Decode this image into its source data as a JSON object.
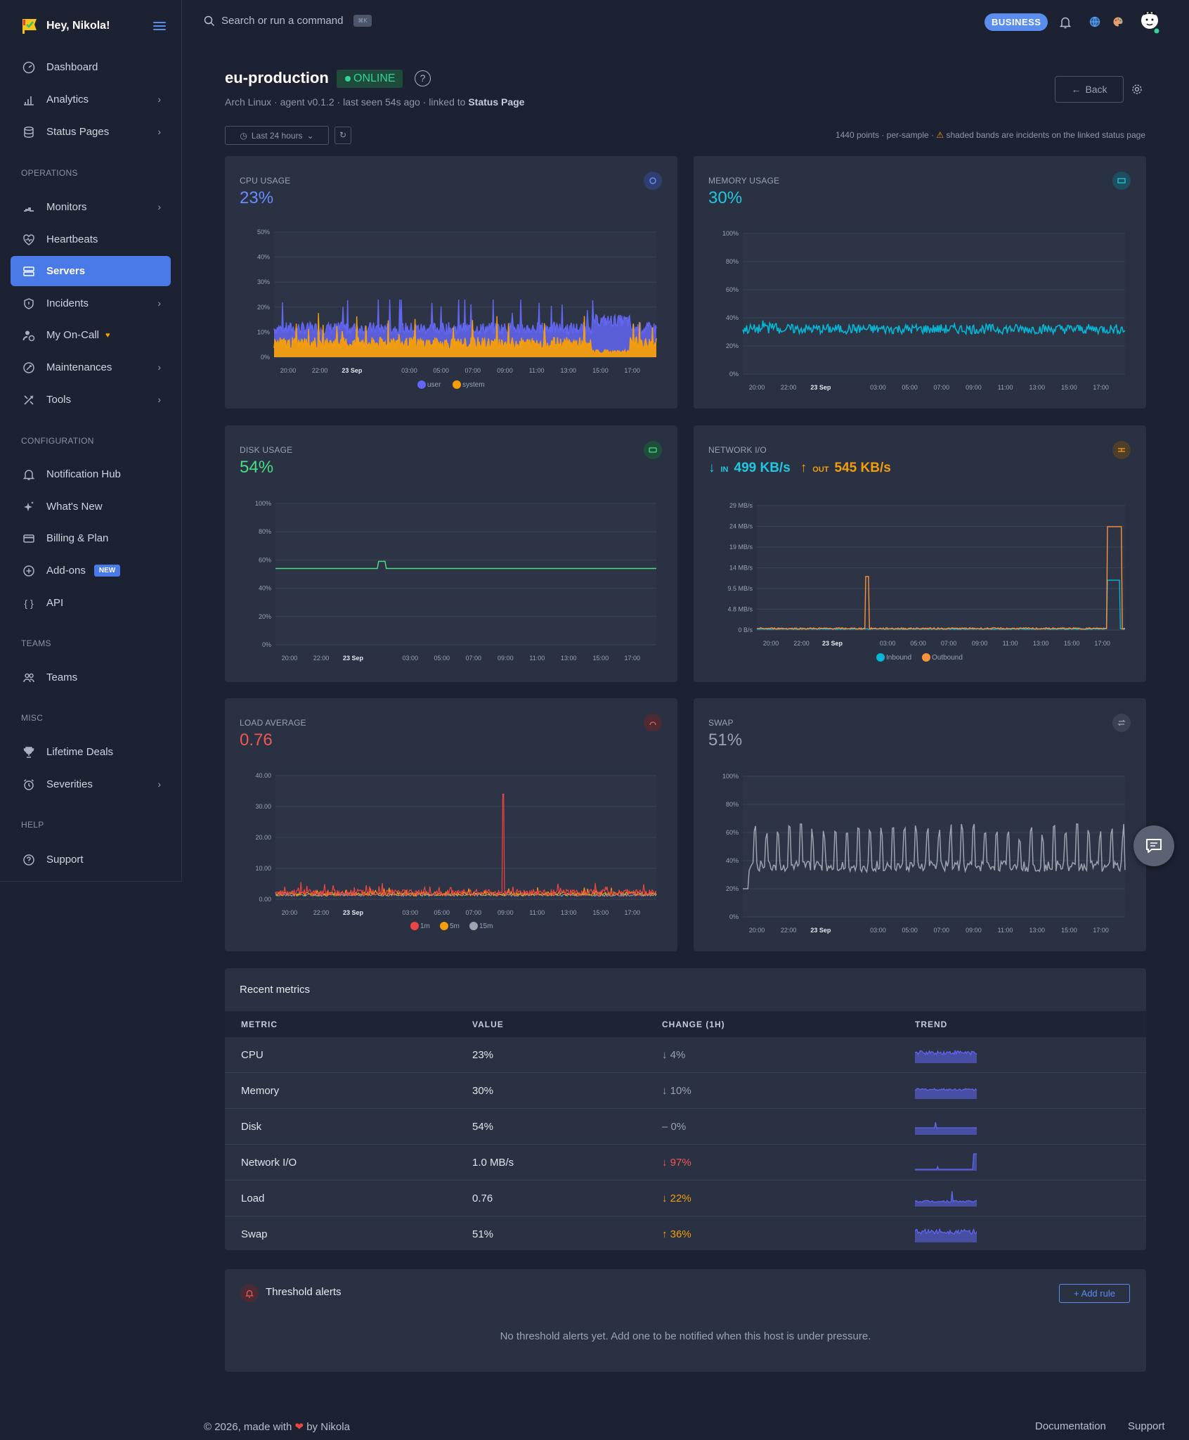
{
  "sidebar": {
    "greeting": "Hey, Nikola!",
    "items": [
      {
        "label": "Dashboard",
        "icon": "gauge-icon"
      },
      {
        "label": "Analytics",
        "icon": "bar-chart-icon"
      },
      {
        "label": "Status Pages",
        "icon": "database-icon"
      },
      {
        "label": "Monitors",
        "icon": "monitor-icon"
      },
      {
        "label": "Heartbeats",
        "icon": "heartbeat-icon"
      },
      {
        "label": "Servers",
        "icon": "server-icon"
      },
      {
        "label": "Incidents",
        "icon": "shield-icon"
      },
      {
        "label": "My On-Call",
        "icon": "user-clock-icon"
      },
      {
        "label": "Maintenances",
        "icon": "wrench-icon"
      },
      {
        "label": "Tools",
        "icon": "tools-icon"
      },
      {
        "label": "Notification Hub",
        "icon": "bell-icon"
      },
      {
        "label": "What's New",
        "icon": "sparkles-icon"
      },
      {
        "label": "Billing & Plan",
        "icon": "credit-card-icon"
      },
      {
        "label": "Add-ons",
        "icon": "plus-circle-icon"
      },
      {
        "label": "API",
        "icon": "braces-icon"
      },
      {
        "label": "Teams",
        "icon": "users-icon"
      },
      {
        "label": "Lifetime Deals",
        "icon": "trophy-icon"
      },
      {
        "label": "Severities",
        "icon": "alarm-icon"
      },
      {
        "label": "Support",
        "icon": "help-circle-icon"
      }
    ],
    "sections": {
      "operations": "OPERATIONS",
      "configuration": "CONFIGURATION",
      "teams": "TEAMS",
      "misc": "MISC",
      "help": "HELP"
    },
    "new_badge": "NEW"
  },
  "topbar": {
    "search_placeholder": "Search or run a command",
    "shortcut": "⌘K",
    "plan": "BUSINESS"
  },
  "server": {
    "name": "eu-production",
    "status": "ONLINE",
    "subtitle": "Arch Linux · agent v0.1.2 · last seen 54s ago · linked to ",
    "subtitle_link": "Status Page",
    "back": "Back",
    "range": "Last 24 hours",
    "meta": "1440 points · per-sample · ",
    "meta_warn": "⚠",
    "meta2": " shaded bands are incidents on the linked status page"
  },
  "cards": {
    "cpu": {
      "label": "CPU USAGE",
      "value": "23%"
    },
    "memory": {
      "label": "MEMORY USAGE",
      "value": "30%"
    },
    "disk": {
      "label": "DISK USAGE",
      "value": "54%"
    },
    "network": {
      "label": "NETWORK I/O",
      "in_label": "IN",
      "in_value": "499 KB/s",
      "out_label": "OUT",
      "out_value": "545 KB/s"
    },
    "load": {
      "label": "LOAD AVERAGE",
      "value": "0.76"
    },
    "swap": {
      "label": "SWAP",
      "value": "51%"
    }
  },
  "chart_data": [
    {
      "type": "area",
      "title": "CPU USAGE",
      "yticks": [
        "0%",
        "10%",
        "20%",
        "30%",
        "40%",
        "50%"
      ],
      "ylim": [
        0,
        50
      ],
      "xticks": [
        "20:00",
        "22:00",
        "23 Sep",
        "03:00",
        "05:00",
        "07:00",
        "09:00",
        "11:00",
        "13:00",
        "15:00",
        "17:00"
      ],
      "series": [
        {
          "name": "user",
          "color": "#6366f1"
        },
        {
          "name": "system",
          "color": "#f59e0b"
        }
      ]
    },
    {
      "type": "line",
      "title": "MEMORY USAGE",
      "yticks": [
        "0%",
        "20%",
        "40%",
        "60%",
        "80%",
        "100%"
      ],
      "ylim": [
        0,
        100
      ],
      "xticks": [
        "20:00",
        "22:00",
        "23 Sep",
        "03:00",
        "05:00",
        "07:00",
        "09:00",
        "11:00",
        "13:00",
        "15:00",
        "17:00"
      ],
      "series": [
        {
          "color": "#06b6d4",
          "level": 32
        }
      ]
    },
    {
      "type": "line",
      "title": "DISK USAGE",
      "yticks": [
        "0%",
        "20%",
        "40%",
        "60%",
        "80%",
        "100%"
      ],
      "ylim": [
        0,
        100
      ],
      "xticks": [
        "20:00",
        "22:00",
        "23 Sep",
        "03:00",
        "05:00",
        "07:00",
        "09:00",
        "11:00",
        "13:00",
        "15:00",
        "17:00"
      ],
      "series": [
        {
          "color": "#4ade80",
          "level": 54
        }
      ]
    },
    {
      "type": "line",
      "title": "NETWORK I/O",
      "yticks": [
        "0 B/s",
        "4.8 MB/s",
        "9.5 MB/s",
        "14 MB/s",
        "19 MB/s",
        "24 MB/s",
        "29 MB/s"
      ],
      "xticks": [
        "20:00",
        "22:00",
        "23 Sep",
        "03:00",
        "05:00",
        "07:00",
        "09:00",
        "11:00",
        "13:00",
        "15:00",
        "17:00"
      ],
      "series": [
        {
          "name": "Inbound",
          "color": "#06b6d4"
        },
        {
          "name": "Outbound",
          "color": "#fb923c"
        }
      ]
    },
    {
      "type": "line",
      "title": "LOAD AVERAGE",
      "yticks": [
        "0.00",
        "10.00",
        "20.00",
        "30.00",
        "40.00"
      ],
      "ylim": [
        0,
        40
      ],
      "xticks": [
        "20:00",
        "22:00",
        "23 Sep",
        "03:00",
        "05:00",
        "07:00",
        "09:00",
        "11:00",
        "13:00",
        "15:00",
        "17:00"
      ],
      "series": [
        {
          "name": "1m",
          "color": "#ef4444"
        },
        {
          "name": "5m",
          "color": "#f59e0b"
        },
        {
          "name": "15m",
          "color": "#9ca3af"
        }
      ]
    },
    {
      "type": "line",
      "title": "SWAP",
      "yticks": [
        "0%",
        "20%",
        "40%",
        "60%",
        "80%",
        "100%"
      ],
      "ylim": [
        0,
        100
      ],
      "xticks": [
        "20:00",
        "22:00",
        "23 Sep",
        "03:00",
        "05:00",
        "07:00",
        "09:00",
        "11:00",
        "13:00",
        "15:00",
        "17:00"
      ],
      "series": [
        {
          "color": "#9ca3af",
          "level": 45
        }
      ]
    }
  ],
  "metrics_table": {
    "title": "Recent metrics",
    "headers": [
      "METRIC",
      "VALUE",
      "CHANGE (1H)",
      "TREND"
    ],
    "rows": [
      {
        "metric": "CPU",
        "value": "23%",
        "change": "↓ 4%",
        "dir": "down"
      },
      {
        "metric": "Memory",
        "value": "30%",
        "change": "↓ 10%",
        "dir": "down"
      },
      {
        "metric": "Disk",
        "value": "54%",
        "change": "– 0%",
        "dir": "flat"
      },
      {
        "metric": "Network I/O",
        "value": "1.0 MB/s",
        "change": "↓ 97%",
        "dir": "down-red"
      },
      {
        "metric": "Load",
        "value": "0.76",
        "change": "↓ 22%",
        "dir": "down-orange"
      },
      {
        "metric": "Swap",
        "value": "51%",
        "change": "↑ 36%",
        "dir": "up"
      }
    ]
  },
  "alerts": {
    "title": "Threshold alerts",
    "add": "+ Add rule",
    "empty": "No threshold alerts yet. Add one to be notified when this host is under pressure."
  },
  "footer": {
    "prefix": "© 2026, made with",
    "by": "by",
    "author": "Nikola",
    "docs": "Documentation",
    "support": "Support"
  }
}
